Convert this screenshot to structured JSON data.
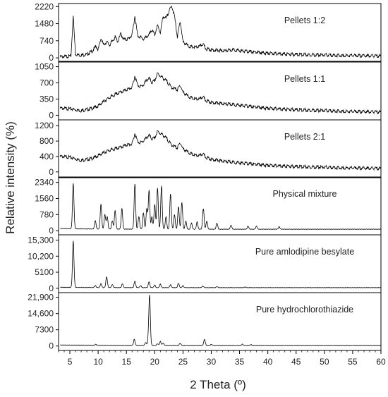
{
  "chart_data": {
    "type": "line",
    "xlabel": "2 Theta (º)",
    "ylabel": "Relative intensity (%)",
    "xlim": [
      3,
      60
    ],
    "x_ticks": [
      "5",
      "10",
      "15",
      "20",
      "25",
      "30",
      "35",
      "40",
      "45",
      "50",
      "55",
      "60"
    ],
    "grid": false,
    "line_color": "#000000",
    "panels": [
      {
        "name": "Pellets 1:2",
        "ylim": [
          -150,
          2350
        ],
        "y_ticks": [
          0,
          740,
          1480,
          2220
        ],
        "y_tick_labels": [
          "0",
          "740",
          "1480",
          "2220"
        ],
        "style": "noisy",
        "points": [
          [
            3.5,
            50
          ],
          [
            4.5,
            60
          ],
          [
            5.2,
            80
          ],
          [
            5.6,
            1800
          ],
          [
            6,
            150
          ],
          [
            7,
            120
          ],
          [
            8,
            150
          ],
          [
            9,
            300
          ],
          [
            9.6,
            500
          ],
          [
            10,
            350
          ],
          [
            10.5,
            850
          ],
          [
            11,
            550
          ],
          [
            11.5,
            700
          ],
          [
            12,
            550
          ],
          [
            13,
            900
          ],
          [
            13.5,
            700
          ],
          [
            14,
            1050
          ],
          [
            14.5,
            800
          ],
          [
            15,
            800
          ],
          [
            15.5,
            850
          ],
          [
            16,
            1000
          ],
          [
            16.5,
            1800
          ],
          [
            17,
            950
          ],
          [
            17.5,
            900
          ],
          [
            18,
            800
          ],
          [
            18.5,
            900
          ],
          [
            19,
            1000
          ],
          [
            19.5,
            1200
          ],
          [
            20,
            1000
          ],
          [
            20.5,
            1400
          ],
          [
            21,
            1100
          ],
          [
            21.5,
            1800
          ],
          [
            22,
            1700
          ],
          [
            22.5,
            2000
          ],
          [
            23,
            2250
          ],
          [
            23.5,
            1800
          ],
          [
            24,
            900
          ],
          [
            24.5,
            1600
          ],
          [
            25,
            700
          ],
          [
            26,
            500
          ],
          [
            27,
            450
          ],
          [
            28,
            500
          ],
          [
            28.5,
            600
          ],
          [
            29,
            400
          ],
          [
            30,
            350
          ],
          [
            32,
            300
          ],
          [
            34,
            350
          ],
          [
            36,
            280
          ],
          [
            40,
            200
          ],
          [
            45,
            150
          ],
          [
            50,
            120
          ],
          [
            55,
            100
          ],
          [
            60,
            80
          ]
        ]
      },
      {
        "name": "Pellets 1:1",
        "ylim": [
          -100,
          1150
        ],
        "y_ticks": [
          0,
          350,
          700,
          1050
        ],
        "y_tick_labels": [
          "0",
          "350",
          "700",
          "1050"
        ],
        "style": "noisy",
        "points": [
          [
            3.5,
            150
          ],
          [
            5,
            140
          ],
          [
            7,
            100
          ],
          [
            9,
            150
          ],
          [
            10,
            200
          ],
          [
            11,
            300
          ],
          [
            12,
            380
          ],
          [
            13,
            450
          ],
          [
            14,
            500
          ],
          [
            15,
            550
          ],
          [
            16,
            600
          ],
          [
            16.5,
            850
          ],
          [
            17,
            650
          ],
          [
            17.5,
            620
          ],
          [
            18,
            650
          ],
          [
            18.5,
            750
          ],
          [
            19,
            800
          ],
          [
            19.5,
            700
          ],
          [
            20,
            750
          ],
          [
            20.5,
            900
          ],
          [
            21,
            850
          ],
          [
            21.5,
            800
          ],
          [
            22,
            750
          ],
          [
            23,
            600
          ],
          [
            24,
            550
          ],
          [
            24.5,
            650
          ],
          [
            25,
            500
          ],
          [
            26,
            400
          ],
          [
            27,
            350
          ],
          [
            28,
            350
          ],
          [
            28.5,
            400
          ],
          [
            29,
            320
          ],
          [
            30,
            280
          ],
          [
            32,
            250
          ],
          [
            34,
            230
          ],
          [
            36,
            200
          ],
          [
            40,
            150
          ],
          [
            45,
            120
          ],
          [
            50,
            100
          ],
          [
            55,
            80
          ],
          [
            60,
            70
          ]
        ]
      },
      {
        "name": "Pellets 2:1",
        "ylim": [
          -150,
          1350
        ],
        "y_ticks": [
          0,
          400,
          800,
          1200
        ],
        "y_tick_labels": [
          "0",
          "400",
          "800",
          "1200"
        ],
        "style": "noisy",
        "points": [
          [
            3.5,
            400
          ],
          [
            5,
            380
          ],
          [
            7,
            300
          ],
          [
            9,
            350
          ],
          [
            10,
            420
          ],
          [
            11,
            500
          ],
          [
            12,
            560
          ],
          [
            13,
            600
          ],
          [
            14,
            640
          ],
          [
            15,
            700
          ],
          [
            16,
            720
          ],
          [
            16.5,
            1000
          ],
          [
            17,
            780
          ],
          [
            17.5,
            760
          ],
          [
            18,
            800
          ],
          [
            18.5,
            880
          ],
          [
            19,
            950
          ],
          [
            19.5,
            850
          ],
          [
            20,
            880
          ],
          [
            20.5,
            1050
          ],
          [
            21,
            1000
          ],
          [
            21.5,
            950
          ],
          [
            22,
            880
          ],
          [
            23,
            700
          ],
          [
            24,
            620
          ],
          [
            24.5,
            760
          ],
          [
            25,
            600
          ],
          [
            26,
            500
          ],
          [
            27,
            430
          ],
          [
            28,
            420
          ],
          [
            28.5,
            470
          ],
          [
            29,
            380
          ],
          [
            30,
            330
          ],
          [
            32,
            280
          ],
          [
            34,
            250
          ],
          [
            36,
            220
          ],
          [
            40,
            170
          ],
          [
            45,
            140
          ],
          [
            50,
            120
          ],
          [
            55,
            100
          ],
          [
            60,
            90
          ]
        ]
      },
      {
        "name": "Physical mixture",
        "ylim": [
          -200,
          2600
        ],
        "y_ticks": [
          0,
          780,
          1560,
          2340
        ],
        "y_tick_labels": [
          "0",
          "780",
          "1560",
          "2340"
        ],
        "style": "peaks",
        "baseline": 70,
        "peaks": [
          [
            5.6,
            2200
          ],
          [
            9.5,
            400
          ],
          [
            10.5,
            1200
          ],
          [
            11.2,
            700
          ],
          [
            11.6,
            600
          ],
          [
            12.5,
            400
          ],
          [
            13,
            900
          ],
          [
            14.2,
            1000
          ],
          [
            16.5,
            2200
          ],
          [
            17.2,
            600
          ],
          [
            18,
            800
          ],
          [
            18.6,
            1000
          ],
          [
            19,
            1900
          ],
          [
            19.5,
            600
          ],
          [
            20,
            1200
          ],
          [
            20.5,
            2000
          ],
          [
            21.2,
            2100
          ],
          [
            22,
            600
          ],
          [
            22.8,
            1700
          ],
          [
            23.5,
            700
          ],
          [
            24.2,
            1100
          ],
          [
            24.8,
            1300
          ],
          [
            25.5,
            400
          ],
          [
            26.5,
            300
          ],
          [
            27.5,
            350
          ],
          [
            28.6,
            1000
          ],
          [
            29.2,
            400
          ],
          [
            31,
            300
          ],
          [
            33.5,
            200
          ],
          [
            36.5,
            150
          ],
          [
            38,
            150
          ],
          [
            42,
            120
          ]
        ]
      },
      {
        "name": "Pure amlodipine besylate",
        "ylim": [
          -1400,
          17000
        ],
        "y_ticks": [
          0,
          5100,
          10200,
          15300
        ],
        "y_tick_labels": [
          "0",
          "5100",
          "10,200",
          "15,300"
        ],
        "style": "peaks",
        "baseline": 200,
        "peaks": [
          [
            5.6,
            14800
          ],
          [
            9.5,
            600
          ],
          [
            10.5,
            1200
          ],
          [
            11.5,
            3400
          ],
          [
            12.5,
            1000
          ],
          [
            14.3,
            1200
          ],
          [
            16.5,
            2100
          ],
          [
            17.5,
            600
          ],
          [
            19,
            1900
          ],
          [
            20,
            800
          ],
          [
            21,
            1100
          ],
          [
            22.8,
            900
          ],
          [
            24.2,
            1400
          ],
          [
            25,
            600
          ],
          [
            28.5,
            500
          ],
          [
            31,
            300
          ],
          [
            36,
            200
          ]
        ]
      },
      {
        "name": "Pure hydrochlorothiazide",
        "ylim": [
          -2000,
          24000
        ],
        "y_ticks": [
          0,
          7300,
          14600,
          21900
        ],
        "y_tick_labels": [
          "0",
          "7300",
          "14,600",
          "21,900"
        ],
        "style": "peaks",
        "baseline": 300,
        "peaks": [
          [
            9.6,
            400
          ],
          [
            16.4,
            2700
          ],
          [
            18.4,
            1300
          ],
          [
            18.9,
            3500
          ],
          [
            19.1,
            21500
          ],
          [
            20.5,
            700
          ],
          [
            21,
            1700
          ],
          [
            21.5,
            1000
          ],
          [
            24.5,
            900
          ],
          [
            28.8,
            2700
          ],
          [
            30,
            400
          ],
          [
            35.5,
            500
          ],
          [
            37,
            300
          ]
        ]
      }
    ]
  }
}
